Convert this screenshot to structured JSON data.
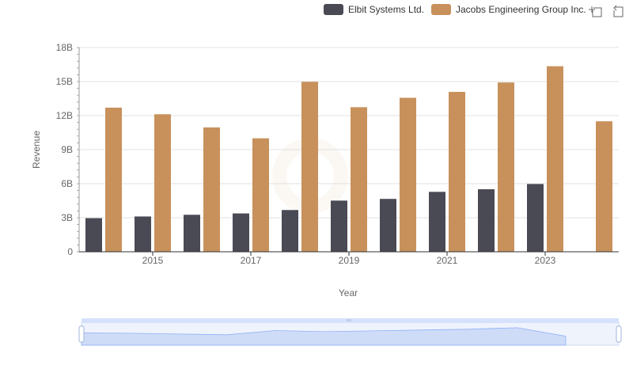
{
  "chart_data": {
    "type": "bar",
    "title": "",
    "xlabel": "Year",
    "ylabel": "Revenue",
    "ylim": [
      0,
      18000000000
    ],
    "y_ticks": [
      "0",
      "3B",
      "6B",
      "9B",
      "12B",
      "15B",
      "18B"
    ],
    "x_tick_labels": [
      "2015",
      "2017",
      "2019",
      "2021",
      "2023"
    ],
    "categories": [
      "2014",
      "2015",
      "2016",
      "2017",
      "2018",
      "2019",
      "2020",
      "2021",
      "2022",
      "2023",
      "2024"
    ],
    "series": [
      {
        "name": "Elbit Systems Ltd.",
        "color": "#4a4a55",
        "values": [
          2960000000,
          3110000000,
          3260000000,
          3380000000,
          3680000000,
          4510000000,
          4660000000,
          5280000000,
          5510000000,
          5970000000,
          null
        ]
      },
      {
        "name": "Jacobs Engineering Group Inc.",
        "color": "#c8915c",
        "values": [
          12700000000,
          12120000000,
          10960000000,
          10000000000,
          14980000000,
          12740000000,
          13570000000,
          14090000000,
          14920000000,
          16350000000,
          11500000000
        ]
      }
    ],
    "legend": "top-right",
    "grid": true
  },
  "toolbar": {
    "zoom_icon": "zoom-icon",
    "restore_icon": "restore-icon"
  },
  "data_zoom": {
    "handle_icon": "grip-icon",
    "range": [
      0,
      100
    ]
  }
}
